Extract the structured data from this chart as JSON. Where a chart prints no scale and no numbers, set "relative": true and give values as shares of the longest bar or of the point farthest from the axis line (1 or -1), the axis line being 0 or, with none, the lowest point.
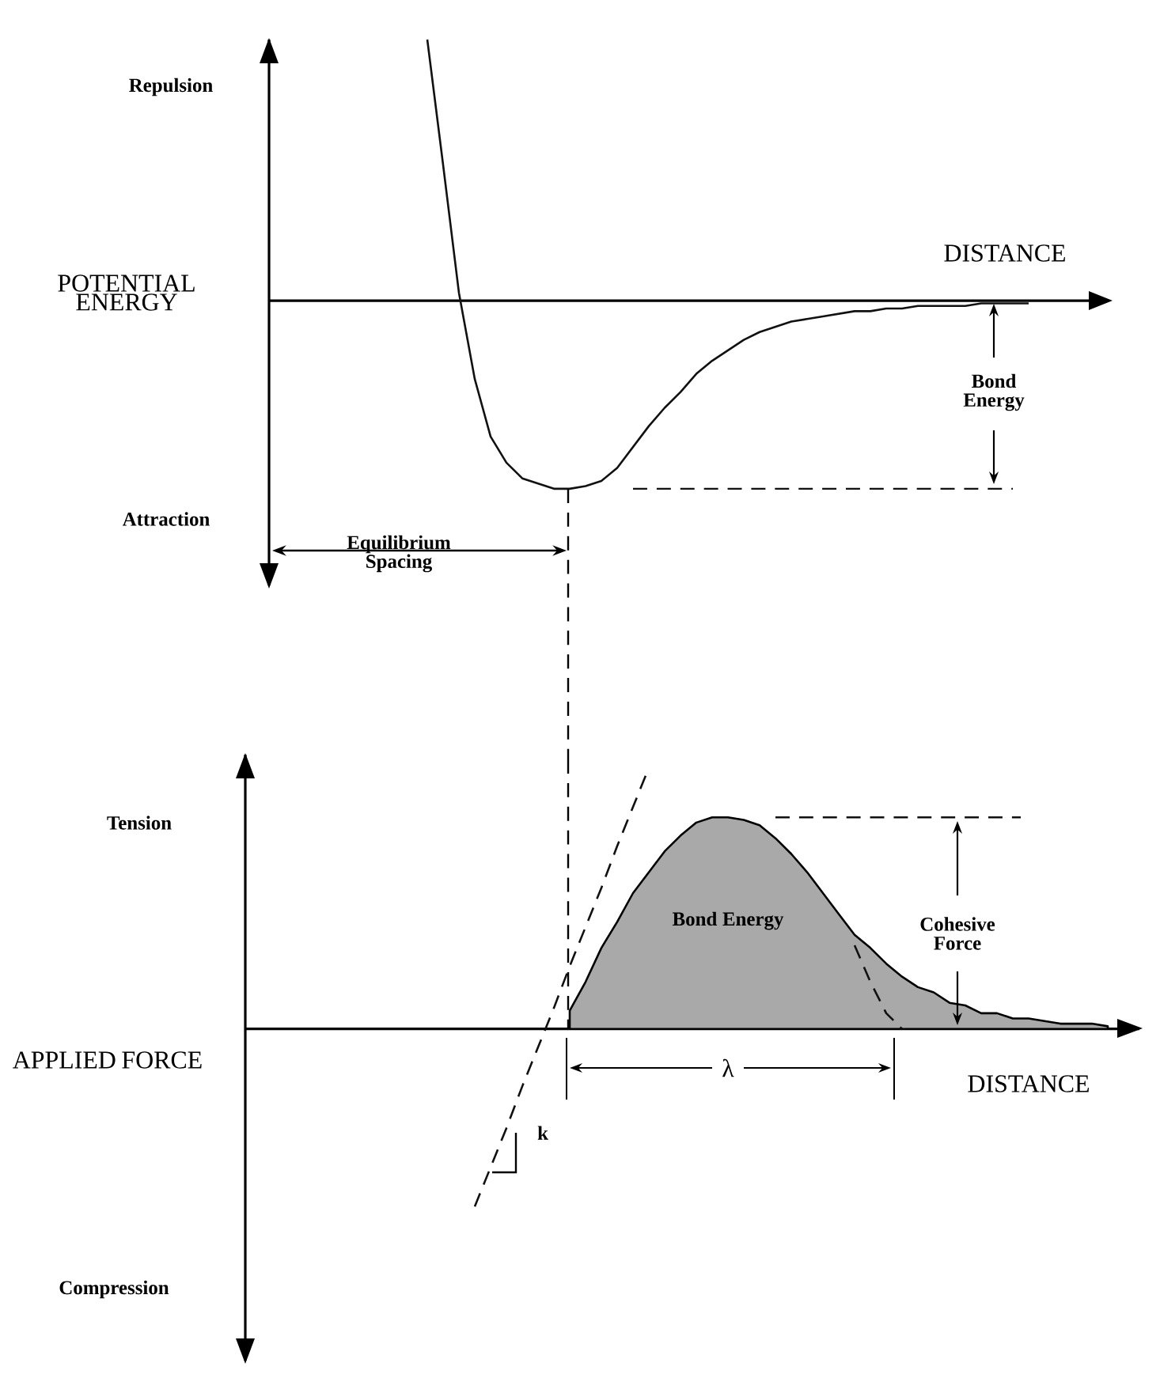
{
  "chart_data": [
    {
      "type": "line",
      "relative": true,
      "xlabel": "DISTANCE",
      "ylabel": "POTENTIAL ENERGY",
      "annotations": [
        "Repulsion",
        "Attraction",
        "Equilibrium Spacing",
        "Bond Energy"
      ],
      "categories": [
        null,
        null,
        null,
        null,
        null,
        null,
        null,
        null,
        null,
        null,
        null,
        null,
        null,
        null,
        null,
        null,
        null,
        null,
        null,
        null,
        null,
        null,
        null,
        null,
        null,
        null,
        null,
        null,
        null,
        null,
        null,
        null,
        null,
        null,
        null,
        null,
        null,
        null,
        null,
        null,
        null,
        null,
        null,
        null,
        null,
        null,
        null,
        null,
        null,
        null,
        null,
        null,
        null
      ],
      "series": [
        {
          "color": "#111111",
          "values": [
            null,
            null,
            null,
            null,
            null,
            null,
            null,
            null,
            null,
            null,
            1.0,
            0.52,
            0.03,
            -0.3,
            -0.52,
            -0.62,
            -0.68,
            -0.7,
            -0.72,
            -0.72,
            -0.71,
            -0.69,
            -0.64,
            -0.56,
            -0.48,
            -0.41,
            -0.35,
            -0.28,
            -0.23,
            -0.19,
            -0.15,
            -0.12,
            -0.1,
            -0.08,
            -0.07,
            -0.06,
            -0.05,
            -0.04,
            -0.04,
            -0.03,
            -0.03,
            -0.02,
            -0.02,
            -0.02,
            -0.02,
            -0.01,
            -0.01,
            -0.01,
            -0.01,
            null,
            null,
            null,
            null
          ]
        }
      ],
      "ref_lines": [
        {
          "axis": "y",
          "value": -0.72,
          "color": "#111111",
          "line_style": "dashed"
        }
      ]
    },
    {
      "type": "area",
      "relative": true,
      "xlabel": "DISTANCE",
      "ylabel": "APPLIED FORCE",
      "annotations": [
        "Tension",
        "Compression",
        "Bond Energy",
        "Cohesive Force",
        "λ",
        "k"
      ],
      "categories": [
        null,
        null,
        null,
        null,
        null,
        null,
        null,
        null,
        null,
        null,
        null,
        null,
        null,
        null,
        null,
        null,
        null,
        null,
        null,
        null,
        null,
        null,
        null,
        null,
        null,
        null,
        null,
        null,
        null,
        null,
        null,
        null,
        null,
        null,
        null,
        null,
        null,
        null,
        null,
        null,
        null,
        null,
        null,
        null,
        null,
        null,
        null,
        null,
        null,
        null,
        null,
        null,
        null,
        null,
        null,
        null
      ],
      "series": [
        {
          "color": "#a9a9a9",
          "values": [
            null,
            null,
            null,
            null,
            null,
            null,
            null,
            null,
            null,
            null,
            null,
            null,
            null,
            null,
            null,
            null,
            null,
            null,
            null,
            null,
            0.07,
            0.18,
            0.31,
            0.41,
            0.52,
            0.6,
            0.68,
            0.74,
            0.79,
            0.81,
            0.81,
            0.8,
            0.78,
            0.73,
            0.67,
            0.6,
            0.52,
            0.44,
            0.36,
            0.31,
            0.25,
            0.2,
            0.16,
            0.14,
            0.1,
            0.09,
            0.06,
            0.06,
            0.04,
            0.04,
            0.03,
            0.02,
            0.02,
            0.02,
            0.01,
            null
          ]
        },
        {
          "type": "line",
          "line_style": "dashed",
          "color": "#111111",
          "values": [
            null,
            null,
            null,
            null,
            null,
            null,
            null,
            null,
            null,
            null,
            null,
            null,
            null,
            null,
            -0.68,
            -0.53,
            -0.38,
            -0.22,
            -0.07,
            0.08,
            0.24,
            0.39,
            0.54,
            0.7,
            0.85,
            1.0,
            null,
            null,
            null,
            null,
            null,
            null,
            null,
            null,
            null,
            null,
            null,
            null,
            null,
            null,
            null,
            null,
            null,
            null,
            null,
            null,
            null,
            null,
            null,
            null,
            null,
            null,
            null,
            null,
            null,
            null
          ]
        },
        {
          "type": "line",
          "line_style": "dashed",
          "color": "#111111",
          "values": [
            null,
            null,
            null,
            null,
            null,
            null,
            null,
            null,
            null,
            null,
            null,
            null,
            null,
            null,
            null,
            null,
            null,
            null,
            null,
            null,
            null,
            null,
            null,
            null,
            null,
            null,
            null,
            null,
            null,
            null,
            null,
            null,
            null,
            null,
            null,
            null,
            null,
            null,
            0.32,
            0.18,
            0.06,
            0.0,
            null,
            null,
            null,
            null,
            null,
            null,
            null,
            null,
            null,
            null,
            null,
            null,
            null,
            null
          ]
        }
      ],
      "ref_lines": [
        {
          "axis": "y",
          "value": 0.81,
          "color": "#111111",
          "line_style": "dashed"
        }
      ]
    }
  ]
}
